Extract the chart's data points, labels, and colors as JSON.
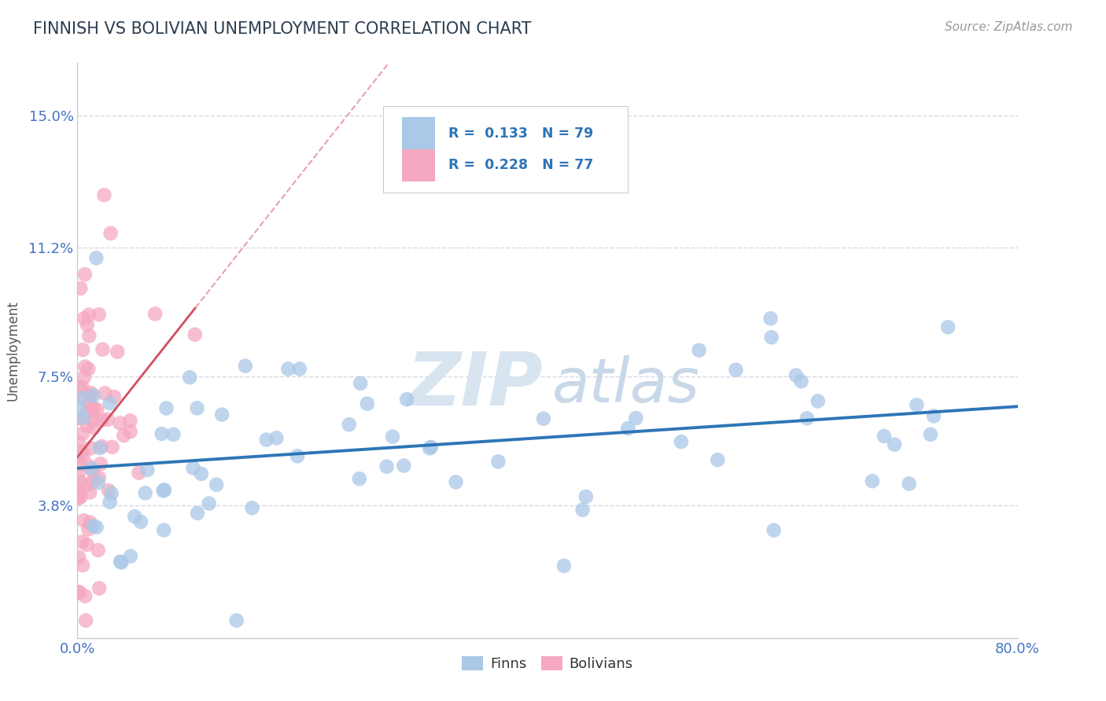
{
  "title": "FINNISH VS BOLIVIAN UNEMPLOYMENT CORRELATION CHART",
  "source": "Source: ZipAtlas.com",
  "ylabel": "Unemployment",
  "xlim": [
    0.0,
    0.8
  ],
  "ylim": [
    0.0,
    0.165
  ],
  "yticks": [
    0.038,
    0.075,
    0.112,
    0.15
  ],
  "ytick_labels": [
    "3.8%",
    "7.5%",
    "11.2%",
    "15.0%"
  ],
  "xticks": [
    0.0,
    0.2,
    0.4,
    0.6,
    0.8
  ],
  "xtick_labels": [
    "0.0%",
    "",
    "",
    "",
    "80.0%"
  ],
  "finns_R": 0.133,
  "finns_N": 79,
  "bolivians_R": 0.228,
  "bolivians_N": 77,
  "finns_color": "#aac8e8",
  "bolivians_color": "#f5a8c0",
  "finns_line_color": "#2e75b6",
  "bolivians_line_color": "#d05060",
  "dashed_line_color": "#e8a0b0",
  "watermark_zip_color": "#d8e4f0",
  "watermark_atlas_color": "#c8d8e8",
  "background_color": "#ffffff",
  "grid_color": "#d8d8e8",
  "title_color": "#2c3e50",
  "axis_label_color": "#4472c4",
  "legend_color": "#2e75b6"
}
